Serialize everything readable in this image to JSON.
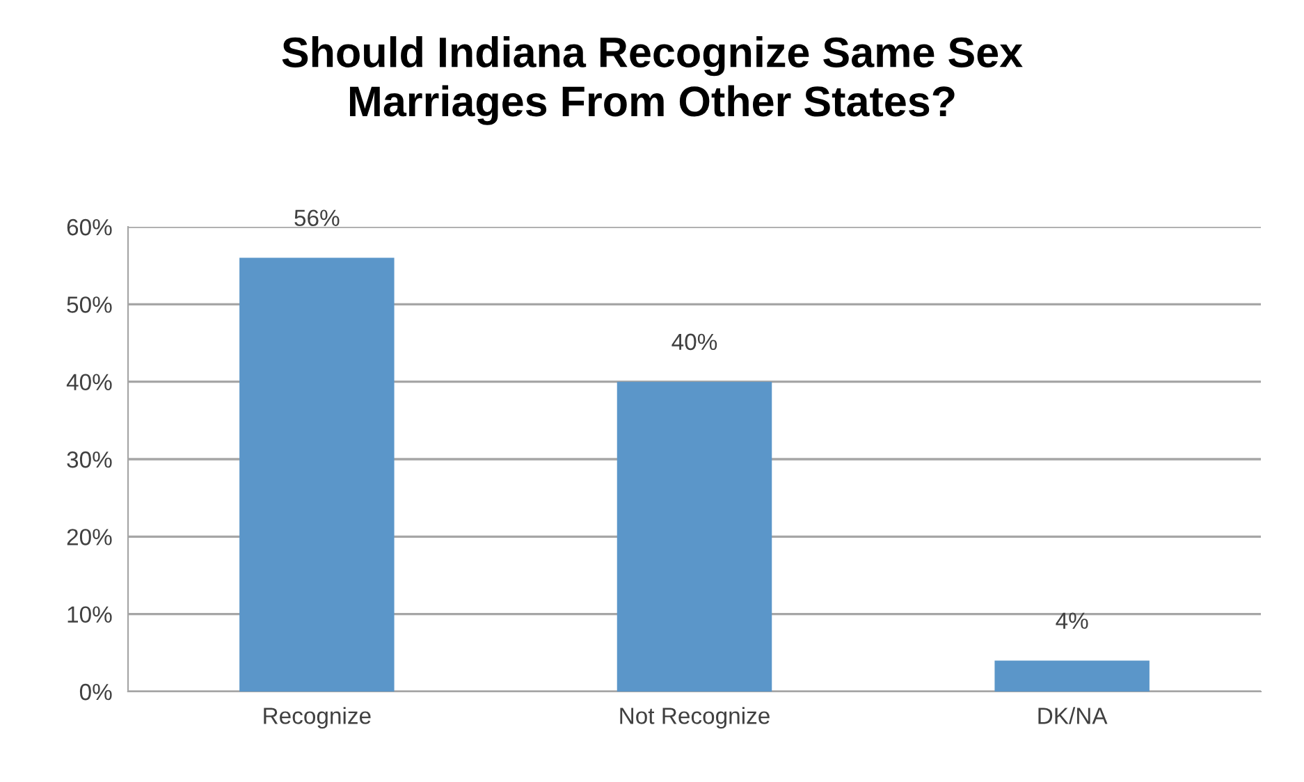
{
  "chart_data": {
    "type": "bar",
    "title": "Should Indiana Recognize Same Sex\nMarriages From Other States?",
    "categories": [
      "Recognize",
      "Not Recognize",
      "DK/NA"
    ],
    "values": [
      56,
      40,
      4
    ],
    "value_labels": [
      "56%",
      "40%",
      "4%"
    ],
    "color": "#5b96c9",
    "ylim": [
      0,
      60
    ],
    "yticks": [
      {
        "value": 0,
        "label": "0%"
      },
      {
        "value": 10,
        "label": "10%"
      },
      {
        "value": 20,
        "label": "20%"
      },
      {
        "value": 30,
        "label": "30%"
      },
      {
        "value": 40,
        "label": "40%"
      },
      {
        "value": 50,
        "label": "50%"
      },
      {
        "value": 60,
        "label": "60%"
      }
    ],
    "grid": "y",
    "legend": false
  }
}
